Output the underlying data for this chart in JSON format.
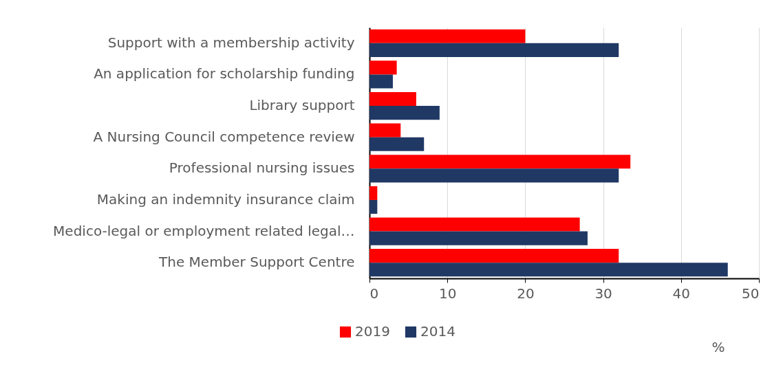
{
  "chart_data": {
    "type": "bar",
    "orientation": "horizontal",
    "xlabel": "%",
    "categories": [
      "Support with a membership activity",
      "An application for scholarship funding",
      "Library support",
      "A Nursing Council competence review",
      "Professional nursing issues",
      "Making an indemnity insurance claim",
      "Medico-legal or employment related legal…",
      "The Member Support Centre"
    ],
    "series": [
      {
        "name": "2019",
        "color": "#ff0000",
        "values": [
          20,
          3.5,
          6,
          4,
          33.5,
          1,
          27,
          32
        ]
      },
      {
        "name": "2014",
        "color": "#203864",
        "values": [
          32,
          3,
          9,
          7,
          32,
          1,
          28,
          46
        ]
      }
    ],
    "xlim": [
      0,
      50
    ],
    "xticks": [
      0,
      10,
      20,
      30,
      40,
      50
    ],
    "grid": "x",
    "legend": "bottom left"
  }
}
